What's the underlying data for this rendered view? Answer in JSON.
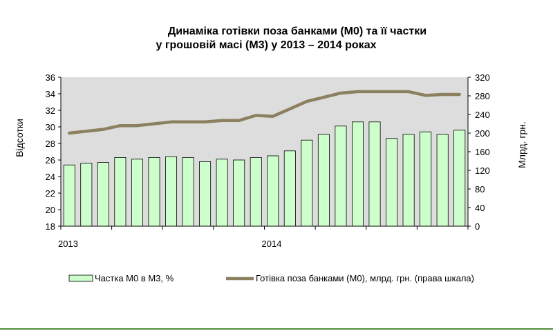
{
  "chart_data": {
    "type": "bar+line",
    "title_line1": "Динаміка готівки поза банками (М0) та її частки",
    "title_line2": "у грошовій масі  (М3) у 2013 – 2014 роках",
    "ylabel_left": "Відсотки",
    "ylabel_right": "Млрд. грн.",
    "y_left": {
      "min": 18,
      "max": 36,
      "step": 2
    },
    "y_right": {
      "min": 0,
      "max": 320,
      "step": 40
    },
    "x_labels": [
      {
        "text": "2013",
        "month_index": 0
      },
      {
        "text": "2014",
        "month_index": 12
      }
    ],
    "months": 24,
    "grid": false,
    "bar_series": {
      "name": "Частка М0 в М3, %",
      "axis": "left",
      "color": "#ccffcc",
      "values": [
        25.4,
        25.6,
        25.7,
        26.3,
        26.1,
        26.3,
        26.4,
        26.3,
        25.8,
        26.1,
        26.0,
        26.3,
        26.5,
        27.1,
        28.4,
        29.1,
        30.1,
        30.6,
        30.6,
        28.6,
        29.1,
        29.4,
        29.1,
        29.6
      ]
    },
    "line_series": {
      "name": "Готівка поза банками (М0), млрд. грн. (права шкала)",
      "axis": "right",
      "color": "#8b8160",
      "values": [
        200,
        204,
        208,
        216,
        216,
        220,
        224,
        224,
        224,
        227,
        227,
        238,
        236,
        252,
        268,
        277,
        286,
        289,
        289,
        289,
        289,
        281,
        283,
        283
      ]
    },
    "plot_background": "#dddddd",
    "legend_position": "bottom"
  },
  "colors": {
    "footer_line": "#4f8f3f"
  }
}
